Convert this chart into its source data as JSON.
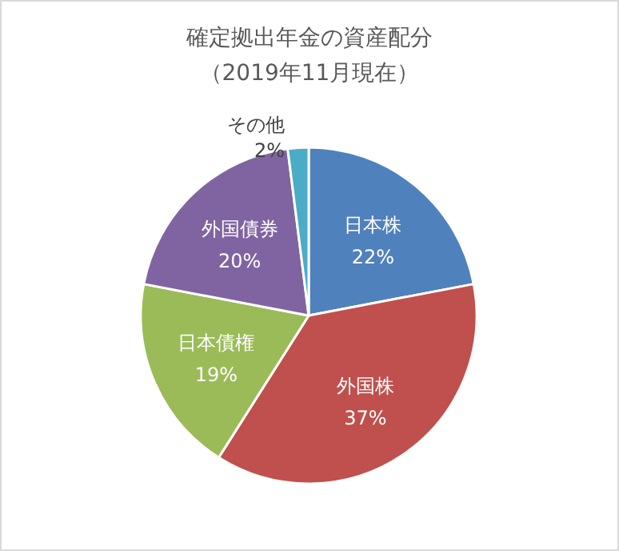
{
  "chart_data": {
    "type": "pie",
    "title": "確定拠出年金の資産配分",
    "subtitle": "（2019年11月現在）",
    "categories": [
      "日本株",
      "外国株",
      "日本債権",
      "外国債券",
      "その他"
    ],
    "values": [
      22,
      37,
      19,
      20,
      2
    ],
    "value_labels": [
      "22%",
      "37%",
      "19%",
      "20%",
      "2%"
    ],
    "colors": [
      "#4f81bd",
      "#c0504d",
      "#9bbb59",
      "#8064a2",
      "#4bacc6"
    ]
  }
}
